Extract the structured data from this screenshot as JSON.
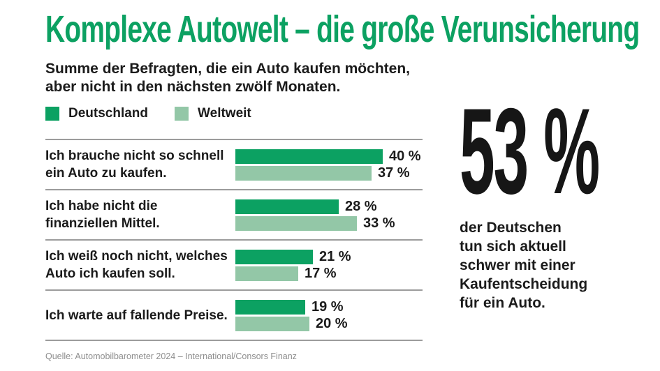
{
  "title": "Komplexe Autowelt – die große Verunsicherung",
  "subtitle_line1": "Summe der Befragten, die ein Auto kaufen möchten,",
  "subtitle_line2": "aber nicht in den nächsten zwölf Monaten.",
  "legend": {
    "deutschland": "Deutschland",
    "weltweit": "Weltweit"
  },
  "colors": {
    "brand_green": "#0ca162",
    "light_green": "#93c7a7",
    "divider_gray": "#9c9c9c",
    "text_black": "#1b1b1b",
    "source_gray": "#8e8e8e"
  },
  "chart_data": {
    "type": "bar",
    "orientation": "horizontal",
    "unit": "%",
    "xlim": [
      0,
      42
    ],
    "grid": false,
    "legend_position": "top-left",
    "categories": [
      "Ich brauche nicht so schnell ein Auto zu kaufen.",
      "Ich habe nicht die finanziellen Mittel.",
      "Ich weiß noch nicht, welches Auto ich kaufen soll.",
      "Ich warte auf fallende Preise."
    ],
    "series": [
      {
        "name": "Deutschland",
        "color": "#0ca162",
        "values": [
          40,
          28,
          21,
          19
        ]
      },
      {
        "name": "Weltweit",
        "color": "#93c7a7",
        "values": [
          37,
          33,
          17,
          20
        ]
      }
    ],
    "rows": [
      {
        "label_line1": "Ich brauche nicht so schnell",
        "label_line2": "ein Auto zu kaufen.",
        "deutschland": 40,
        "weltweit": 37,
        "deutschland_label": "40 %",
        "weltweit_label": "37 %"
      },
      {
        "label_line1": "Ich habe nicht die",
        "label_line2": "finanziellen Mittel.",
        "deutschland": 28,
        "weltweit": 33,
        "deutschland_label": "28 %",
        "weltweit_label": "33 %"
      },
      {
        "label_line1": "Ich weiß noch nicht, welches",
        "label_line2": "Auto ich kaufen soll.",
        "deutschland": 21,
        "weltweit": 17,
        "deutschland_label": "21 %",
        "weltweit_label": "17 %"
      },
      {
        "label_line1": "Ich warte auf fallende Preise.",
        "label_line2": "",
        "deutschland": 19,
        "weltweit": 20,
        "deutschland_label": "19 %",
        "weltweit_label": "20 %"
      }
    ]
  },
  "callout": {
    "big_number": "53 %",
    "text_lines": [
      "der Deutschen",
      "tun sich aktuell",
      "schwer mit einer",
      "Kaufentscheidung",
      "für ein Auto."
    ]
  },
  "source": "Quelle: Automobilbarometer 2024 – International/Consors Finanz"
}
